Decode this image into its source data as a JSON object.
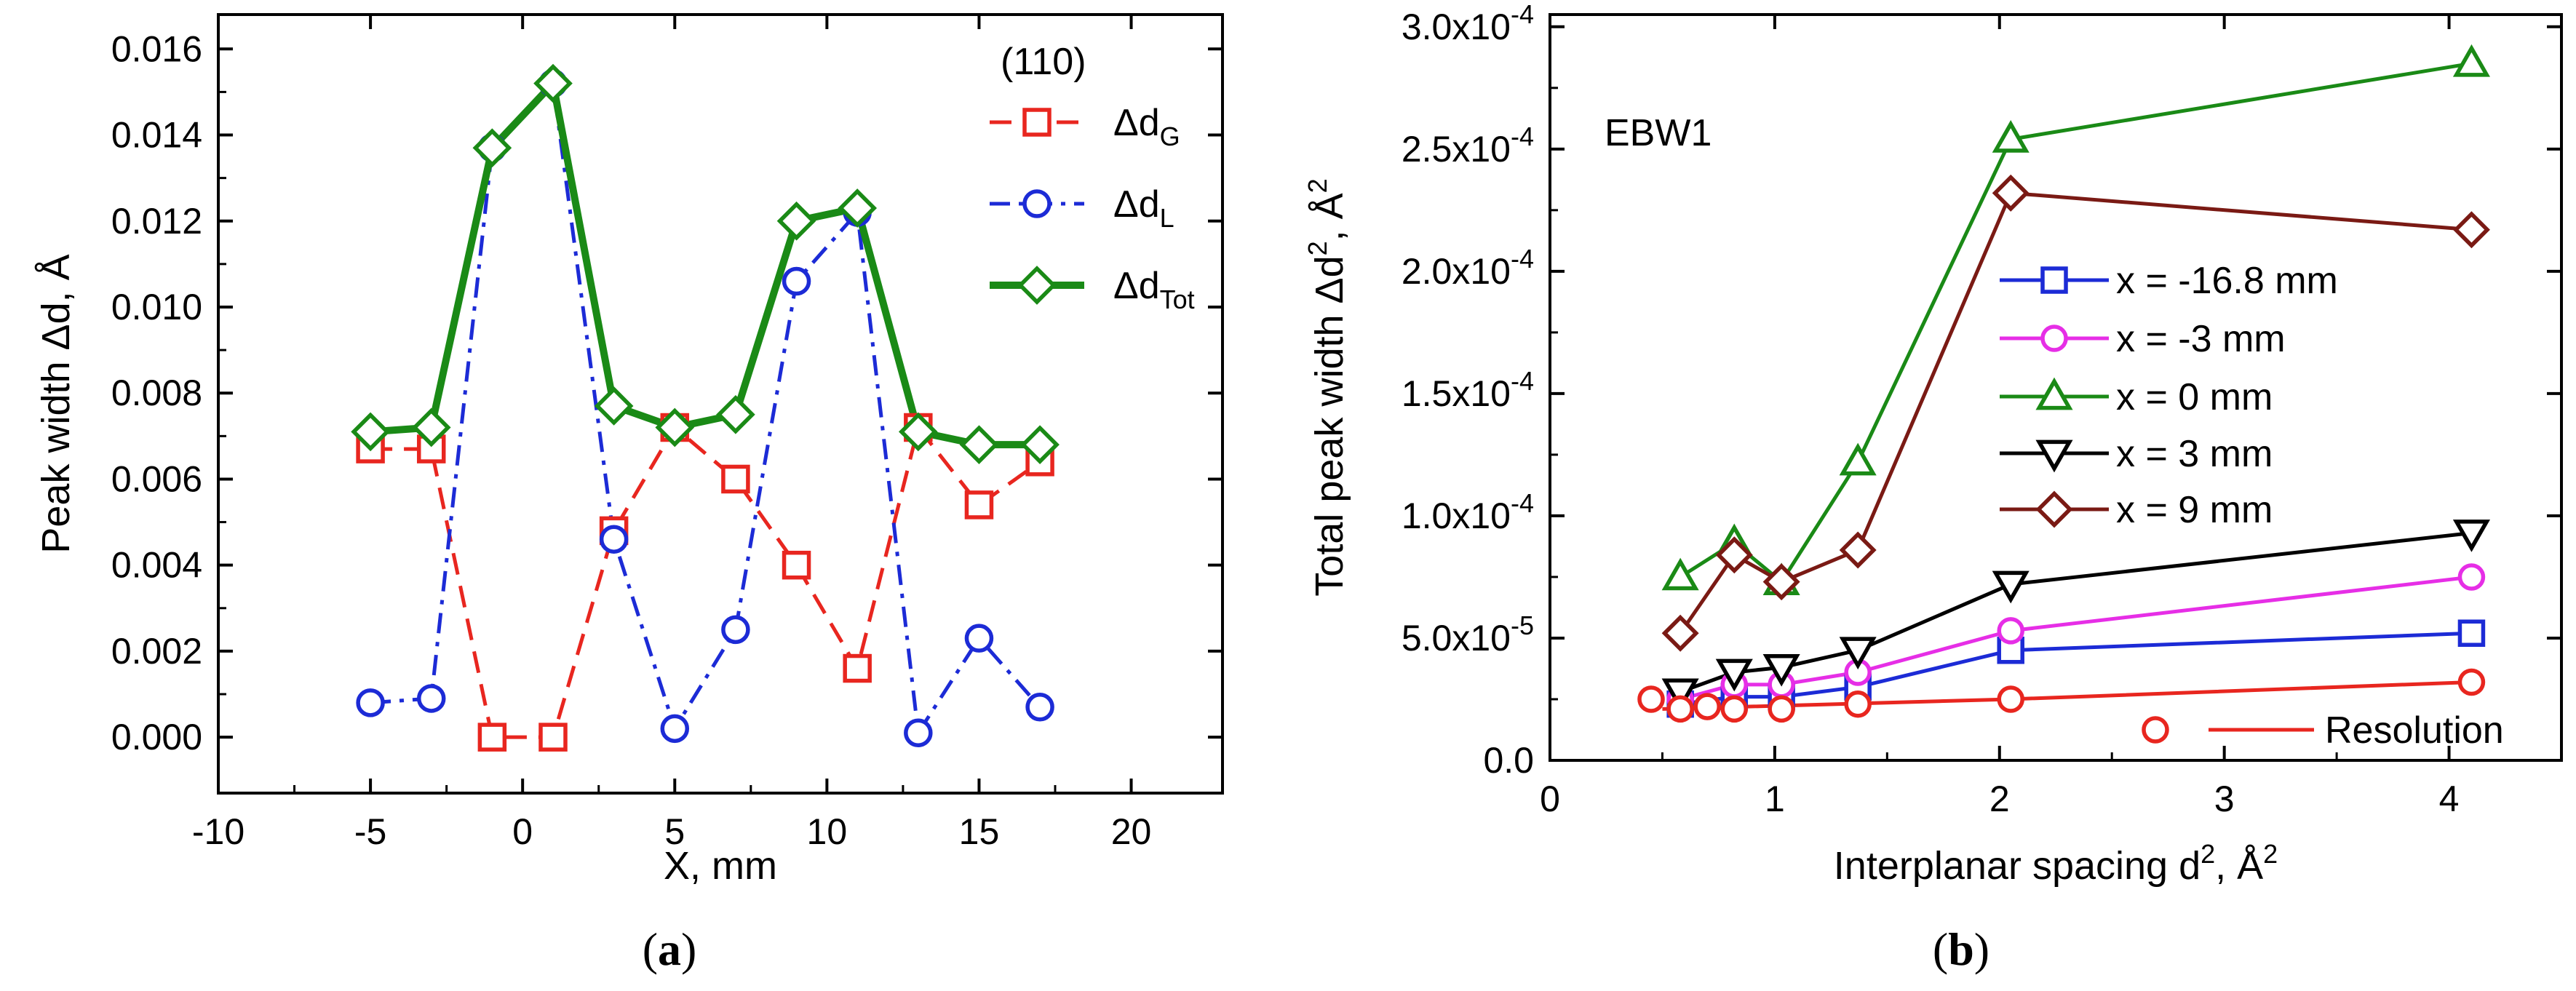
{
  "chart_data": [
    {
      "type": "line",
      "panel_label": "a",
      "xlabel": "X, mm",
      "ylabel": "Peak width Δd, Å",
      "xlim": [
        -10,
        23
      ],
      "ylim": [
        -0.0013,
        0.0168
      ],
      "xticks": [
        -10,
        -5,
        0,
        5,
        10,
        15,
        20
      ],
      "xtick_labels": [
        "-10",
        "-5",
        "0",
        "5",
        "10",
        "15",
        "20"
      ],
      "yticks": [
        0,
        0.002,
        0.004,
        0.006,
        0.008,
        0.01,
        0.012,
        0.014,
        0.016
      ],
      "ytick_labels": [
        "0.000",
        "0.002",
        "0.004",
        "0.006",
        "0.008",
        "0.010",
        "0.012",
        "0.014",
        "0.016"
      ],
      "legend_title": "(110)",
      "legend_position": "top-right",
      "x": [
        -5,
        -3,
        -1,
        1,
        3,
        5,
        7,
        9,
        11,
        13,
        15,
        17
      ],
      "series": [
        {
          "name": "Δd",
          "sub": "G",
          "marker": "square",
          "line": "dashed",
          "color": "#e8261f",
          "values": [
            0.0067,
            0.0067,
            0.0,
            0.0,
            0.0048,
            0.0072,
            0.006,
            0.004,
            0.0016,
            0.0072,
            0.0054,
            0.0064
          ]
        },
        {
          "name": "Δd",
          "sub": "L",
          "marker": "circle",
          "line": "dashdot",
          "color": "#1c2bd6",
          "values": [
            0.0008,
            0.0009,
            0.0137,
            0.0152,
            0.0046,
            0.0002,
            0.0025,
            0.0106,
            0.0122,
            0.0001,
            0.0023,
            0.0007
          ]
        },
        {
          "name": "Δd",
          "sub": "Tot",
          "marker": "diamond",
          "line": "solid",
          "color": "#1a8a16",
          "values": [
            0.0071,
            0.0072,
            0.0137,
            0.0152,
            0.0077,
            0.0072,
            0.0075,
            0.012,
            0.0123,
            0.0071,
            0.0068,
            0.0068
          ]
        }
      ]
    },
    {
      "type": "line",
      "panel_label": "b",
      "annotation": "EBW1",
      "xlabel": "Interplanar spacing d², Å²",
      "ylabel": "Total peak width Δd², Å²",
      "xlim": [
        0,
        4.5
      ],
      "ylim": [
        0,
        0.000305
      ],
      "xticks": [
        0,
        1,
        2,
        3,
        4
      ],
      "xtick_labels": [
        "0",
        "1",
        "2",
        "3",
        "4"
      ],
      "yticks": [
        0,
        5e-05,
        0.0001,
        0.00015,
        0.0002,
        0.00025,
        0.0003
      ],
      "ytick_labels": [
        "0.0",
        "5.0x10-5",
        "1.0x10-4",
        "1.5x10-4",
        "2.0x10-4",
        "2.5x10-4",
        "3.0x10-4"
      ],
      "legend_position": "center",
      "series": [
        {
          "name": "x = -16.8 mm",
          "marker": "square",
          "color": "#1c2bd6",
          "x": [
            0.58,
            0.82,
            1.03,
            1.37,
            2.05,
            4.1
          ],
          "values": [
            2.3e-05,
            2.6e-05,
            2.6e-05,
            3e-05,
            4.5e-05,
            5.2e-05
          ]
        },
        {
          "name": "x = -3 mm",
          "marker": "circle",
          "color": "#e62ee6",
          "x": [
            0.58,
            0.82,
            1.03,
            1.37,
            2.05,
            4.1
          ],
          "values": [
            2.5e-05,
            3.1e-05,
            3.1e-05,
            3.6e-05,
            5.3e-05,
            7.5e-05
          ]
        },
        {
          "name": "x = 0 mm",
          "marker": "triangle-up",
          "color": "#1a8a16",
          "x": [
            0.58,
            0.82,
            1.03,
            1.37,
            2.05,
            4.1
          ],
          "values": [
            7.5e-05,
            8.9e-05,
            7.3e-05,
            0.000122,
            0.000254,
            0.000285
          ]
        },
        {
          "name": "x = 3 mm",
          "marker": "triangle-down",
          "color": "#000000",
          "x": [
            0.58,
            0.82,
            1.03,
            1.37,
            2.05,
            4.1
          ],
          "values": [
            2.8e-05,
            3.6e-05,
            3.8e-05,
            4.5e-05,
            7.2e-05,
            9.3e-05
          ]
        },
        {
          "name": "x = 9 mm",
          "marker": "diamond",
          "color": "#7a1a14",
          "x": [
            0.58,
            0.82,
            1.03,
            1.37,
            2.05,
            4.1
          ],
          "values": [
            5.2e-05,
            8.4e-05,
            7.3e-05,
            8.6e-05,
            0.000232,
            0.000217
          ]
        },
        {
          "name": "Resolution",
          "marker": "circle-open",
          "line": "solid",
          "color": "#e8261f",
          "marker_x": [
            0.45,
            0.58,
            0.7,
            0.82,
            1.03,
            1.37,
            2.05,
            4.1
          ],
          "marker_values": [
            2.5e-05,
            2.1e-05,
            2.2e-05,
            2.1e-05,
            2.1e-05,
            2.3e-05,
            2.5e-05,
            3.2e-05
          ],
          "x": [
            0.5,
            2.05,
            4.1
          ],
          "values": [
            2.1e-05,
            2.5e-05,
            3.2e-05
          ]
        }
      ]
    }
  ]
}
